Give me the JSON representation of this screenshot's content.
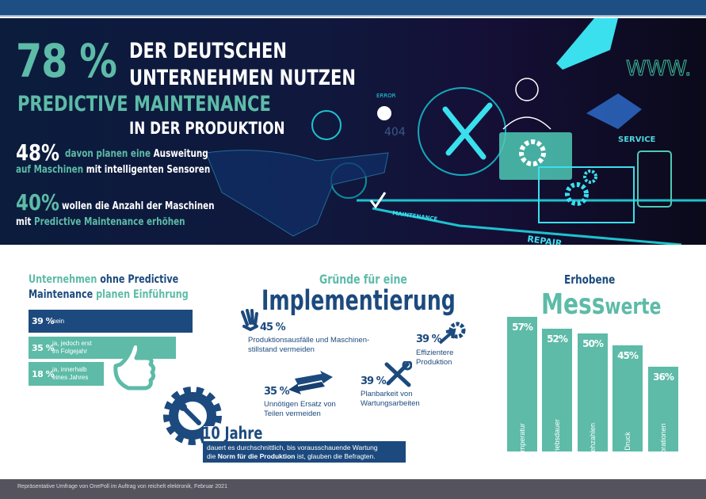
{
  "hero": {
    "big_pct": "78 %",
    "line1": "DER DEUTSCHEN",
    "line2": "UNTERNEHMEN NUTZEN",
    "line3a": "PREDICTIVE",
    "line3b": "MAINTENANCE",
    "line4": "IN DER PRODUKTION",
    "stat1": {
      "pct": "48%",
      "t1": "davon planen eine",
      "t2": "Ausweitung",
      "t3": "auf Maschinen",
      "t4": "mit intelligenten Sensoren"
    },
    "stat2": {
      "pct": "40%",
      "t1": "wollen die Anzahl der Maschinen",
      "t2": "mit",
      "t3": "Predictive Maintenance erhöhen"
    },
    "image_labels": {
      "error": "ERROR",
      "code": "404",
      "www": "WWW.",
      "service": "SERVICE",
      "maintenance": "MAINTENANCE",
      "repair": "REPAIR"
    }
  },
  "plans": {
    "title_a": "Unternehmen",
    "title_b": "ohne Predictive",
    "title_c": "Maintenance",
    "title_d": "planen Einführung",
    "bars": [
      {
        "pct": "39 %",
        "label": "nein",
        "value": 39,
        "color": "#1c4a7e"
      },
      {
        "pct": "35 %",
        "label1": "ja, jedoch erst",
        "label2": "im Folgejahr",
        "value": 35,
        "color": "#5dbba8"
      },
      {
        "pct": "18 %",
        "label1": "ja, innerhalb",
        "label2": "eines Jahres",
        "value": 18,
        "color": "#5dbba8"
      }
    ],
    "icon": "thumbs-up-icon"
  },
  "reasons": {
    "subtitle": "Gründe für eine",
    "title": "Implementierung",
    "items": [
      {
        "pct": "45 %",
        "line1": "Produktionsausfälle und Maschinen-",
        "line2": "stillstand vermeiden",
        "icon": "hand-icon"
      },
      {
        "pct": "39 %",
        "line1": "Effizientere",
        "line2": "Produktion",
        "icon": "gear-arrow-icon"
      },
      {
        "pct": "39 %",
        "line1": "Planbarkeit von",
        "line2": "Wartungsarbeiten",
        "icon": "tools-icon"
      },
      {
        "pct": "35 %",
        "line1": "Unnötigen Ersatz von",
        "line2": "Teilen vermeiden",
        "icon": "swap-arrows-icon"
      }
    ],
    "years": "10 Jahre",
    "years_text1": "dauert es durchschnittlich, bis vorausschauende Wartung",
    "years_text2a": "die",
    "years_text2b": "Norm für die Produktion",
    "years_text2c": "ist, glauben die Befragten."
  },
  "chart_data": {
    "type": "bar",
    "title_a": "Erhobene",
    "title_b": "Mess",
    "title_c": "werte",
    "categories": [
      "Temperatur",
      "Betriebsdauer",
      "Drehzahlen",
      "Druck",
      "Vibrationen"
    ],
    "values": [
      57,
      52,
      50,
      45,
      36
    ],
    "labels": [
      "57%",
      "52%",
      "50%",
      "45%",
      "36%"
    ],
    "color": "#5dbba8"
  },
  "footer": {
    "source": "Repräsentative Umfrage von OnePoll im Auftrag von reichelt elektronik, Februar 2021"
  },
  "colors": {
    "navy": "#1c4a7e",
    "teal": "#5dbba8",
    "hero_bg": "#0b1c3d",
    "footer_bg": "#55535e"
  }
}
